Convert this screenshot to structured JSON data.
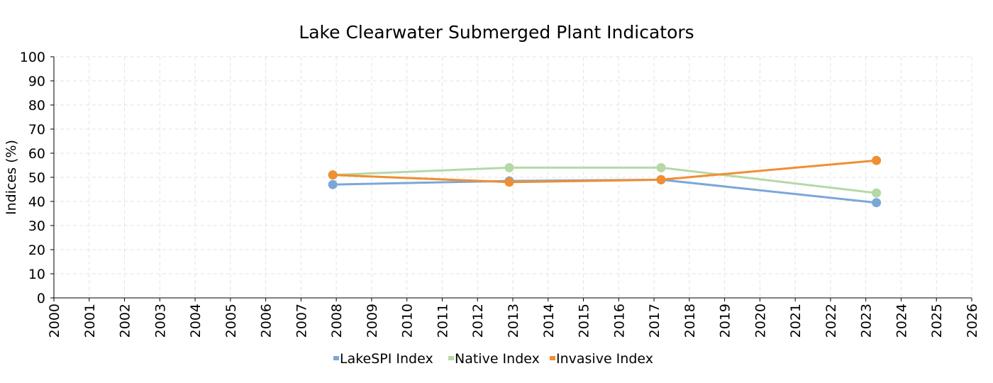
{
  "chart_data": {
    "type": "line",
    "title": "Lake Clearwater Submerged Plant Indicators",
    "xlabel": "",
    "ylabel": "Indices (%)",
    "xlim": [
      2000,
      2026
    ],
    "ylim": [
      0,
      100
    ],
    "x_ticks": [
      "2000",
      "2001",
      "2002",
      "2003",
      "2004",
      "2005",
      "2006",
      "2007",
      "2008",
      "2009",
      "2010",
      "2011",
      "2012",
      "2013",
      "2014",
      "2015",
      "2016",
      "2017",
      "2018",
      "2019",
      "2020",
      "2021",
      "2022",
      "2023",
      "2024",
      "2025",
      "2026"
    ],
    "y_ticks": [
      "0",
      "10",
      "20",
      "30",
      "40",
      "50",
      "60",
      "70",
      "80",
      "90",
      "100"
    ],
    "grid": true,
    "legend_position": "bottom",
    "series": [
      {
        "name": "LakeSPI Index",
        "color": "#7ba7d8",
        "x": [
          2007.9,
          2012.9,
          2017.2,
          2023.3
        ],
        "y": [
          47,
          48.5,
          49,
          39.5
        ]
      },
      {
        "name": "Native Index",
        "color": "#b5d9a6",
        "x": [
          2007.9,
          2012.9,
          2017.2,
          2023.3
        ],
        "y": [
          51,
          54,
          54,
          43.5
        ]
      },
      {
        "name": "Invasive Index",
        "color": "#ef8f33",
        "x": [
          2007.9,
          2012.9,
          2017.2,
          2023.3
        ],
        "y": [
          51,
          48,
          49,
          57
        ]
      }
    ]
  }
}
